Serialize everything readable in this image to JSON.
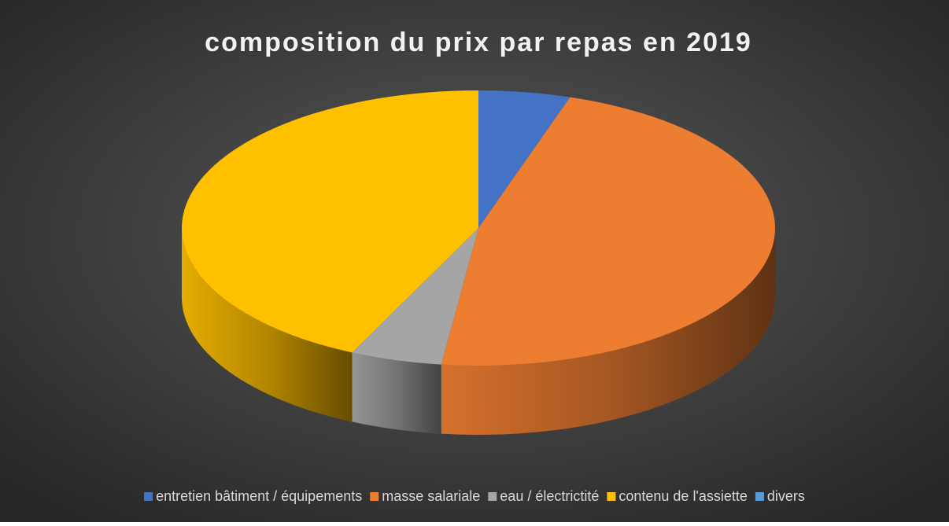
{
  "chart_data": {
    "type": "pie",
    "title": "composition du prix par repas en 2019",
    "categories": [
      "entretien bâtiment / équipements",
      "masse salariale",
      "eau / électrictité",
      "contenu de l'assiette",
      "divers"
    ],
    "values": [
      5,
      47,
      5,
      43,
      0
    ],
    "colors": [
      "#4472c4",
      "#ed7d31",
      "#a5a5a5",
      "#ffc000",
      "#5b9bd5"
    ],
    "legend": "bottom"
  }
}
